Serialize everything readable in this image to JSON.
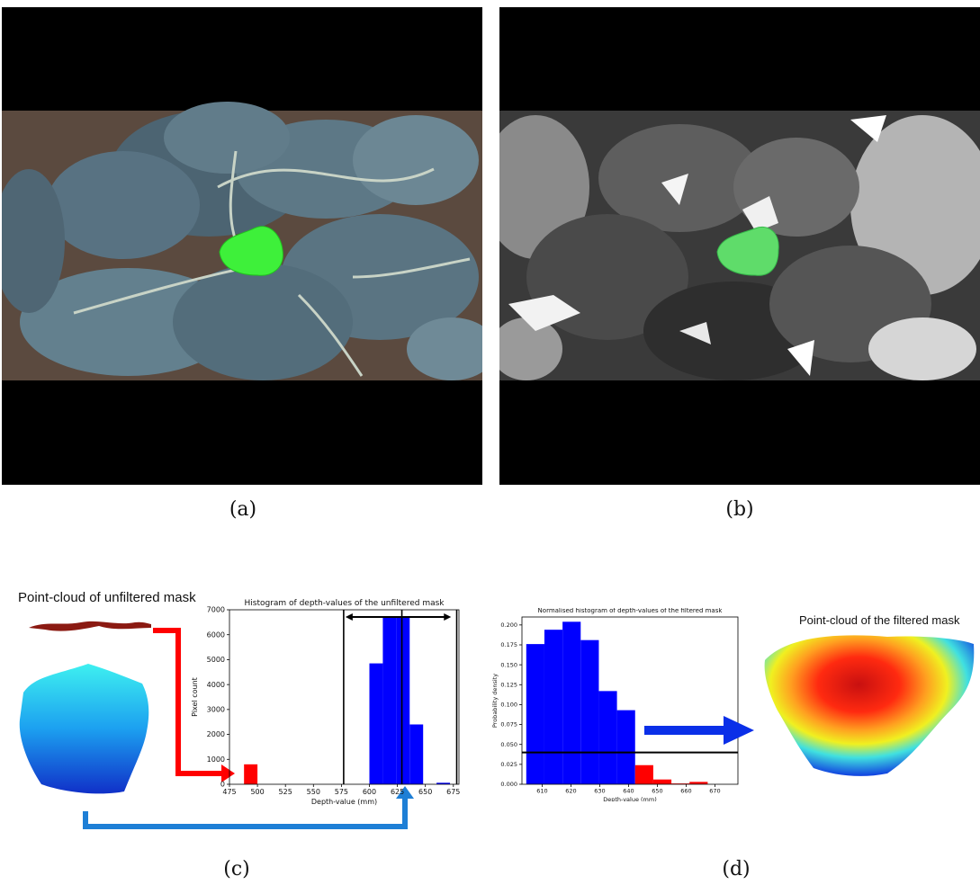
{
  "panels": {
    "a": "(a)",
    "b": "(b)",
    "c": "(c)",
    "d": "(d)"
  },
  "pointcloud_titles": {
    "unfiltered": "Point-cloud of unfiltered mask",
    "filtered": "Point-cloud of the filtered mask"
  },
  "colors": {
    "mask_green": "#3ef03a",
    "hist_blue": "#0000ff",
    "hist_red": "#ff0000",
    "arrow_red": "#ff0000",
    "arrow_lightblue": "#1e7fd6",
    "arrow_blue": "#0a2fe8"
  },
  "chart_data": [
    {
      "type": "bar",
      "title": "Histogram of depth-values of the unfiltered mask",
      "xlabel": "Depth-value (mm)",
      "ylabel": "Pixel count",
      "xlim": [
        475,
        680
      ],
      "ylim": [
        0,
        7000
      ],
      "xticks": [
        475,
        500,
        525,
        550,
        575,
        600,
        625,
        650,
        675
      ],
      "yticks": [
        0,
        1000,
        2000,
        3000,
        4000,
        5000,
        6000,
        7000
      ],
      "bins": [
        {
          "x0": 488,
          "x1": 500,
          "value": 800,
          "color": "red"
        },
        {
          "x0": 600,
          "x1": 612,
          "value": 4850,
          "color": "blue"
        },
        {
          "x0": 612,
          "x1": 624,
          "value": 6700,
          "color": "blue"
        },
        {
          "x0": 624,
          "x1": 636,
          "value": 6700,
          "color": "blue"
        },
        {
          "x0": 636,
          "x1": 648,
          "value": 2400,
          "color": "blue"
        },
        {
          "x0": 648,
          "x1": 660,
          "value": 0,
          "color": "blue"
        },
        {
          "x0": 660,
          "x1": 672,
          "value": 60,
          "color": "blue"
        }
      ],
      "vlines": [
        577,
        629,
        678
      ],
      "range_arrow": [
        577,
        673
      ]
    },
    {
      "type": "bar",
      "title": "Normalised histogram of depth-values of the filtered mask",
      "xlabel": "Depth-value (mm)",
      "ylabel": "Probability density",
      "xlim": [
        603,
        678
      ],
      "ylim": [
        0,
        0.21
      ],
      "xticks": [
        610,
        620,
        630,
        640,
        650,
        660,
        670
      ],
      "yticks": [
        0.0,
        0.025,
        0.05,
        0.075,
        0.1,
        0.125,
        0.15,
        0.175,
        0.2
      ],
      "bins": [
        {
          "x0": 604.5,
          "x1": 610.8,
          "value": 0.176,
          "color": "blue"
        },
        {
          "x0": 610.8,
          "x1": 617.1,
          "value": 0.194,
          "color": "blue"
        },
        {
          "x0": 617.1,
          "x1": 623.4,
          "value": 0.204,
          "color": "blue"
        },
        {
          "x0": 623.4,
          "x1": 629.7,
          "value": 0.181,
          "color": "blue"
        },
        {
          "x0": 629.7,
          "x1": 636.0,
          "value": 0.117,
          "color": "blue"
        },
        {
          "x0": 636.0,
          "x1": 642.3,
          "value": 0.093,
          "color": "blue"
        },
        {
          "x0": 642.3,
          "x1": 648.6,
          "value": 0.024,
          "color": "red"
        },
        {
          "x0": 648.6,
          "x1": 654.9,
          "value": 0.006,
          "color": "red"
        },
        {
          "x0": 654.9,
          "x1": 661.2,
          "value": 0.001,
          "color": "red"
        },
        {
          "x0": 661.2,
          "x1": 667.5,
          "value": 0.003,
          "color": "red"
        }
      ],
      "hline": 0.04
    }
  ]
}
